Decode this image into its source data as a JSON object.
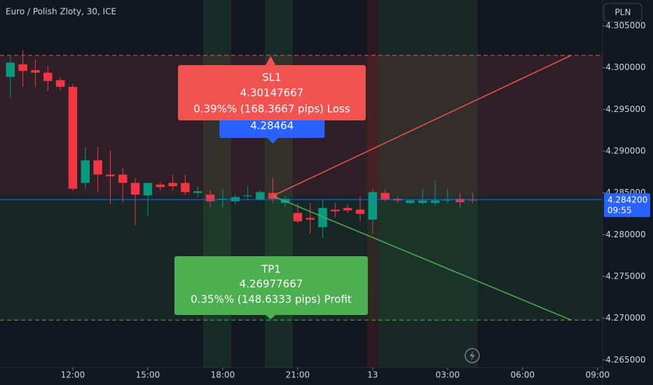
{
  "chart_data": {
    "type": "candlestick",
    "title": "Euro / Polish Zloty, 30, ICE",
    "currency": "PLN",
    "x": [
      -5,
      -4,
      -3,
      -2,
      -1,
      0,
      1,
      2,
      3,
      4,
      5,
      6,
      7,
      8,
      9,
      10,
      11,
      12,
      13,
      14,
      15,
      16,
      17,
      18,
      19,
      20,
      21,
      22,
      23,
      24,
      25,
      26,
      27,
      28,
      29,
      30,
      31,
      32
    ],
    "open": [
      4.2989,
      4.3004,
      4.2997,
      4.2994,
      4.2985,
      4.2977,
      4.2862,
      4.2889,
      4.2872,
      4.2872,
      4.2862,
      4.2847,
      4.286,
      4.2862,
      4.2862,
      4.285,
      4.2848,
      4.2843,
      4.284,
      4.2846,
      4.2842,
      4.285,
      4.2838,
      4.2826,
      4.282,
      4.2809,
      4.283,
      4.2832,
      4.283,
      4.2818,
      4.285,
      4.2843,
      4.2838,
      4.2838,
      4.2838,
      4.2841,
      4.2843,
      4.2842
    ],
    "high": [
      4.3014,
      4.3021,
      4.301,
      4.3002,
      4.2989,
      4.2981,
      4.2905,
      4.2905,
      4.2901,
      4.288,
      4.2868,
      4.2862,
      4.2863,
      4.2872,
      4.2872,
      4.2858,
      4.2853,
      4.2855,
      4.2848,
      4.2858,
      4.2853,
      4.2868,
      4.2846,
      4.2838,
      4.2838,
      4.2842,
      4.2838,
      4.2836,
      4.2846,
      4.2855,
      4.2854,
      4.2846,
      4.2843,
      4.2855,
      4.2865,
      4.2855,
      4.285,
      4.285
    ],
    "low": [
      4.2964,
      4.2977,
      4.2977,
      4.2972,
      4.2972,
      4.2853,
      4.2855,
      4.2851,
      4.2836,
      4.2838,
      4.2811,
      4.2822,
      4.2853,
      4.2853,
      4.2848,
      4.2845,
      4.2833,
      4.2832,
      4.2836,
      4.2842,
      4.2841,
      4.2838,
      4.2834,
      4.2814,
      4.2801,
      4.2796,
      4.2821,
      4.2826,
      4.2816,
      4.2801,
      4.284,
      4.2838,
      4.2836,
      4.2836,
      4.2835,
      4.2838,
      4.2832,
      4.2838
    ],
    "close": [
      4.3006,
      4.2996,
      4.2994,
      4.2984,
      4.2977,
      4.2855,
      4.2889,
      4.2872,
      4.287,
      4.2862,
      4.2848,
      4.2862,
      4.2857,
      4.2858,
      4.2851,
      4.2852,
      4.284,
      4.2843,
      4.2845,
      4.2847,
      4.2851,
      4.2843,
      4.2843,
      4.2816,
      4.2818,
      4.2832,
      4.2828,
      4.2829,
      4.2825,
      4.2851,
      4.2842,
      4.2841,
      4.2841,
      4.2841,
      4.2841,
      4.2842,
      4.2839,
      4.2841
    ],
    "up_color": "#089981",
    "down_color": "#f23645",
    "xlim": [
      -5.83,
      42.4
    ],
    "xticks": [
      {
        "value": 0,
        "label": "12:00"
      },
      {
        "value": 6,
        "label": "15:00"
      },
      {
        "value": 12,
        "label": "18:00"
      },
      {
        "value": 18,
        "label": "21:00"
      },
      {
        "value": 24,
        "label": "13"
      },
      {
        "value": 30,
        "label": "03:00"
      },
      {
        "value": 36,
        "label": "06:00"
      },
      {
        "value": 42,
        "label": "09:00"
      }
    ],
    "ylim": [
      4.2641,
      4.3081
    ],
    "yticks": [
      {
        "value": 4.265,
        "label": "4.265000"
      },
      {
        "value": 4.27,
        "label": "4.270000"
      },
      {
        "value": 4.275,
        "label": "4.275000"
      },
      {
        "value": 4.28,
        "label": "4.280000"
      },
      {
        "value": 4.285,
        "label": "4.285000"
      },
      {
        "value": 4.29,
        "label": "4.290000"
      },
      {
        "value": 4.295,
        "label": "4.295000"
      },
      {
        "value": 4.3,
        "label": "4.300000"
      },
      {
        "value": 4.305,
        "label": "4.305000"
      }
    ],
    "current_price": {
      "value": 4.2842,
      "label": "4.284200",
      "countdown": "09:55",
      "color": "#2962ff"
    },
    "entry": {
      "x": 16,
      "price": 4.28464,
      "color": "#2962ff"
    },
    "stop_loss": {
      "name": "SL1",
      "x": 39.9,
      "price": 4.30147667,
      "text": "0.39%% (168.3667 pips) Loss",
      "color": "#f05350"
    },
    "take_profit": {
      "name": "TP1",
      "x": 39.9,
      "price": 4.26977667,
      "text": "0.35%% (148.6333 pips) Profit",
      "color": "#4caf50"
    }
  }
}
